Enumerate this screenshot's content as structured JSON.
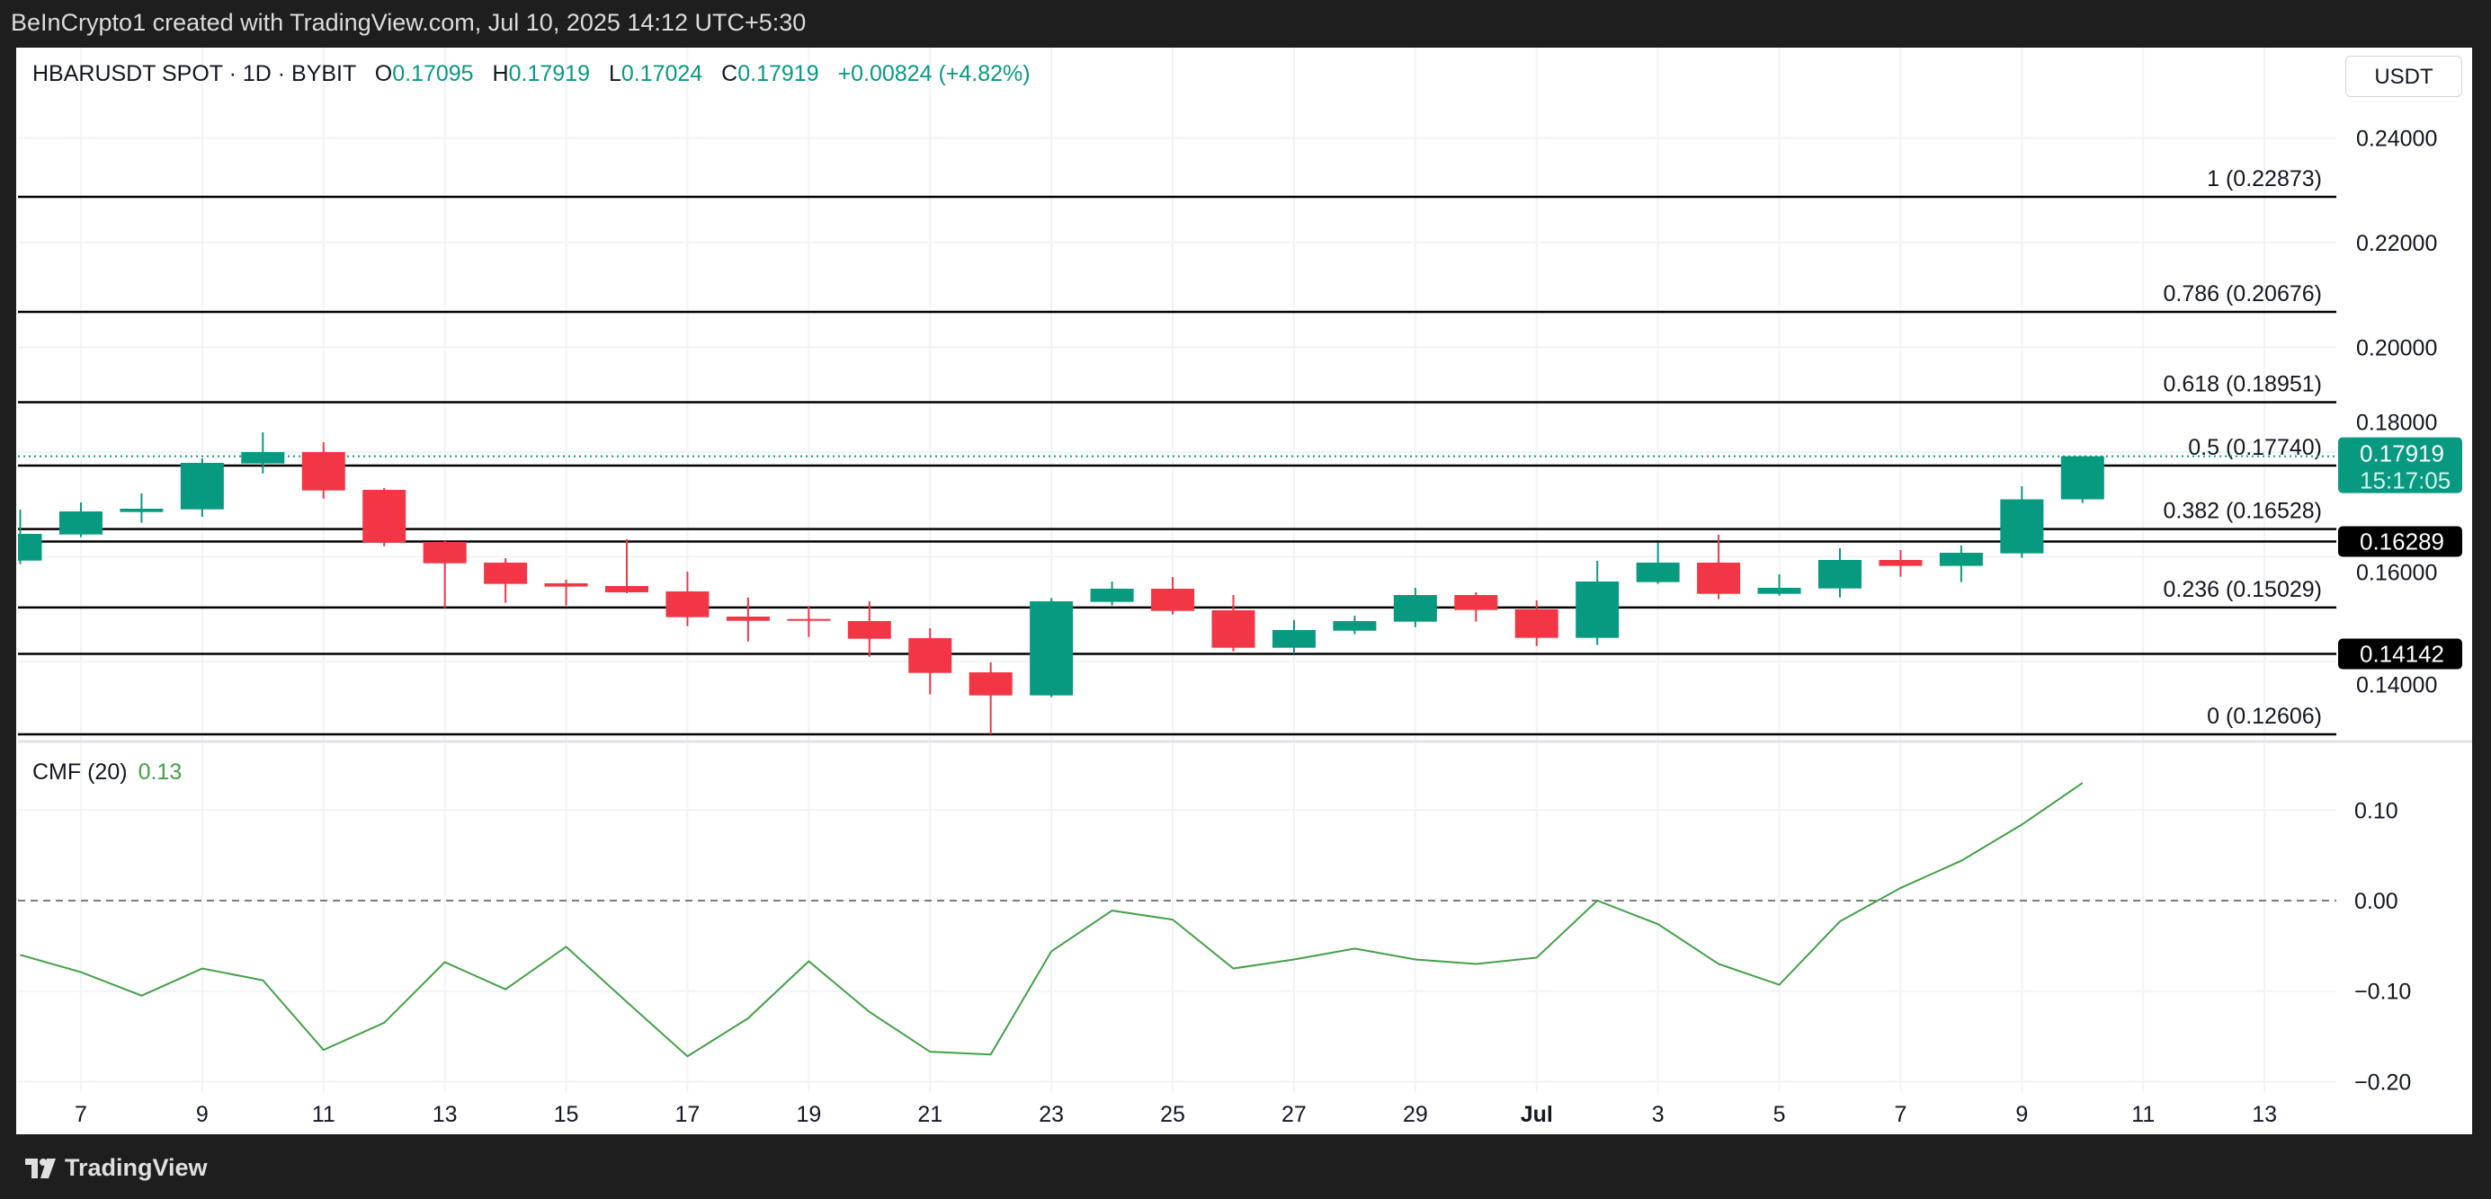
{
  "watermark": "BeInCrypto1 created with TradingView.com, Jul 10, 2025 14:12 UTC+5:30",
  "legend": {
    "symbol": "HBARUSDT SPOT · 1D · BYBIT",
    "o_label": "O",
    "o": "0.17095",
    "h_label": "H",
    "h": "0.17919",
    "l_label": "L",
    "l": "0.17024",
    "c_label": "C",
    "c": "0.17919",
    "change": "+0.00824 (+4.82%)"
  },
  "currency": "USDT",
  "cmf_legend": {
    "name": "CMF (20)",
    "value": "0.13"
  },
  "footer": {
    "brand": "TradingView"
  },
  "colors": {
    "up": "#089981",
    "down": "#f23645",
    "cmf": "#43a047",
    "fib": "#000000"
  },
  "chart_data": [
    {
      "type": "candlestick",
      "ylim": [
        0.115,
        0.25
      ],
      "price_ticks": [
        "0.24000",
        "0.22000",
        "0.20000",
        "0.18000",
        "0.16000",
        "0.14000"
      ],
      "x_tick_labels": [
        "7",
        "9",
        "11",
        "13",
        "15",
        "17",
        "19",
        "21",
        "23",
        "25",
        "27",
        "29",
        "Jul",
        "3",
        "5",
        "7",
        "9",
        "11",
        "13"
      ],
      "grid": true,
      "candles": [
        [
          "2025-06-06",
          0.15925,
          0.16899,
          0.15857,
          0.16435
        ],
        [
          "2025-06-07",
          0.16424,
          0.17036,
          0.16372,
          0.16864
        ],
        [
          "2025-06-08",
          0.16853,
          0.17208,
          0.16647,
          0.16916
        ],
        [
          "2025-06-09",
          0.16904,
          0.17877,
          0.16761,
          0.17792
        ],
        [
          "2025-06-10",
          0.1778,
          0.18375,
          0.17591,
          0.17998
        ],
        [
          "2025-06-11",
          0.17998,
          0.18186,
          0.1711,
          0.17265
        ],
        [
          "2025-06-12",
          0.17276,
          0.17311,
          0.162,
          0.16269
        ],
        [
          "2025-06-13",
          0.1628,
          0.16303,
          0.15016,
          0.15874
        ],
        [
          "2025-06-14",
          0.15886,
          0.15971,
          0.15119,
          0.15479
        ],
        [
          "2025-06-15",
          0.15491,
          0.1556,
          0.15067,
          0.15428
        ],
        [
          "2025-06-16",
          0.15439,
          0.16332,
          0.15302,
          0.15319
        ],
        [
          "2025-06-17",
          0.15336,
          0.15714,
          0.14672,
          0.14844
        ],
        [
          "2025-06-18",
          0.14855,
          0.1522,
          0.1438,
          0.14775
        ],
        [
          "2025-06-19",
          0.1481,
          0.15058,
          0.14466,
          0.14775
        ],
        [
          "2025-06-20",
          0.1477,
          0.15147,
          0.14089,
          0.14432
        ],
        [
          "2025-06-21",
          0.14443,
          0.14632,
          0.13367,
          0.13779
        ],
        [
          "2025-06-22",
          0.1379,
          0.1398,
          0.12606,
          0.1335
        ],
        [
          "2025-06-23",
          0.1335,
          0.1521,
          0.13316,
          0.15147
        ],
        [
          "2025-06-24",
          0.15136,
          0.15525,
          0.15067,
          0.15388
        ],
        [
          "2025-06-25",
          0.15388,
          0.15611,
          0.14895,
          0.14964
        ],
        [
          "2025-06-26",
          0.14976,
          0.15267,
          0.14191,
          0.1426
        ],
        [
          "2025-06-27",
          0.1426,
          0.14787,
          0.14146,
          0.14598
        ],
        [
          "2025-06-28",
          0.14586,
          0.14872,
          0.14518,
          0.14769
        ],
        [
          "2025-06-29",
          0.14758,
          0.15405,
          0.14655,
          0.15267
        ],
        [
          "2025-06-30",
          0.15267,
          0.15319,
          0.14758,
          0.14981
        ],
        [
          "2025-07-01",
          0.14993,
          0.15165,
          0.14294,
          0.14449
        ],
        [
          "2025-07-02",
          0.14449,
          0.1592,
          0.14312,
          0.15525
        ],
        [
          "2025-07-03",
          0.15514,
          0.16269,
          0.1548,
          0.15886
        ],
        [
          "2025-07-04",
          0.15886,
          0.16418,
          0.15187,
          0.1529
        ],
        [
          "2025-07-05",
          0.1529,
          0.15662,
          0.15256,
          0.15405
        ],
        [
          "2025-07-06",
          0.15393,
          0.1616,
          0.15222,
          0.15937
        ],
        [
          "2025-07-07",
          0.15937,
          0.16126,
          0.15617,
          0.15823
        ],
        [
          "2025-07-08",
          0.15823,
          0.16212,
          0.15514,
          0.16074
        ],
        [
          "2025-07-09",
          0.16063,
          0.17345,
          0.15977,
          0.17095
        ],
        [
          "2025-07-10",
          0.17095,
          0.17919,
          0.17024,
          0.17919
        ]
      ],
      "last_price": {
        "value": "0.17919",
        "countdown": "15:17:05"
      },
      "fib_levels": [
        {
          "label": "1 (0.22873)",
          "price": 0.22873
        },
        {
          "label": "0.786 (0.20676)",
          "price": 0.20676
        },
        {
          "label": "0.618 (0.18951)",
          "price": 0.18951
        },
        {
          "label": "0.5 (0.17740)",
          "price": 0.1774
        },
        {
          "label": "0.382 (0.16528)",
          "price": 0.16528
        },
        {
          "label": "0.236 (0.15029)",
          "price": 0.15029
        },
        {
          "label": "0 (0.12606)",
          "price": 0.12606
        }
      ],
      "horizontal_levels": [
        {
          "label": "0.16289",
          "price": 0.16289
        },
        {
          "label": "0.14142",
          "price": 0.14142
        }
      ]
    },
    {
      "type": "line",
      "title": "CMF (20)",
      "ylim": [
        -0.2,
        0.15
      ],
      "y_ticks": [
        "0.10",
        "0.00",
        "−0.10",
        "−0.20"
      ],
      "zero_line": "dashed",
      "values": [
        -0.06,
        -0.079,
        -0.105,
        -0.075,
        -0.088,
        -0.165,
        -0.135,
        -0.068,
        -0.098,
        -0.051,
        -0.112,
        -0.172,
        -0.13,
        -0.067,
        -0.123,
        -0.167,
        -0.17,
        -0.056,
        -0.011,
        -0.021,
        -0.075,
        -0.065,
        -0.053,
        -0.065,
        -0.07,
        -0.063,
        0.0,
        -0.026,
        -0.07,
        -0.093,
        -0.023,
        0.014,
        0.044,
        0.084,
        0.13
      ]
    }
  ]
}
